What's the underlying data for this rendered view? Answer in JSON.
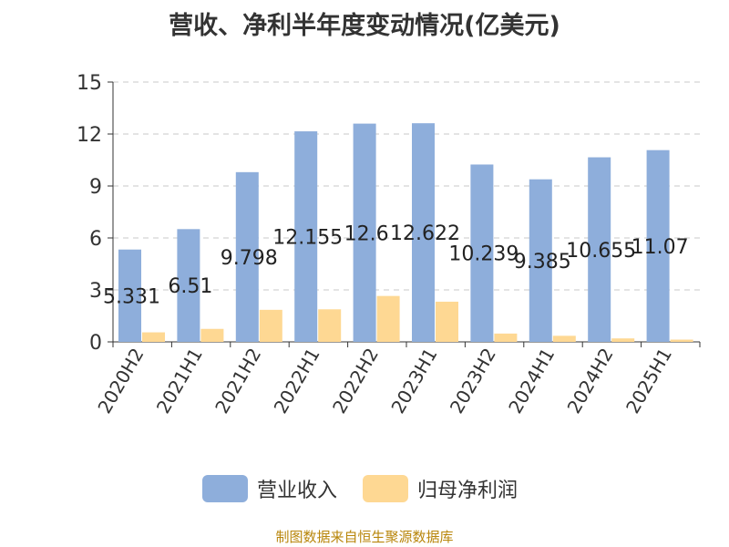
{
  "title": "营收、净利半年度变动情况(亿美元)",
  "source": "制图数据来自恒生聚源数据库",
  "colors": {
    "revenue": "#8eaedb",
    "net_profit": "#fed893"
  },
  "chart_data": {
    "type": "bar",
    "categories": [
      "2020H2",
      "2021H1",
      "2021H2",
      "2022H1",
      "2022H2",
      "2023H1",
      "2023H2",
      "2024H1",
      "2024H2",
      "2025H1"
    ],
    "series": [
      {
        "name": "营业收入",
        "values": [
          5.331,
          6.51,
          9.798,
          12.155,
          12.6,
          12.622,
          10.239,
          9.385,
          10.655,
          11.07
        ],
        "data_labels": [
          "5.331",
          "6.51",
          "9.798",
          "12.155",
          "12.6",
          "12.622",
          "10.239",
          "9.385",
          "10.655",
          "11.07"
        ]
      },
      {
        "name": "归母净利润",
        "values": [
          0.55,
          0.75,
          1.85,
          1.88,
          2.65,
          2.32,
          0.48,
          0.35,
          0.2,
          0.13
        ]
      }
    ],
    "y_ticks": [
      "0",
      "3",
      "6",
      "9",
      "12",
      "15"
    ],
    "ylim": [
      0,
      15
    ],
    "grid": true,
    "legend_position": "bottom"
  }
}
